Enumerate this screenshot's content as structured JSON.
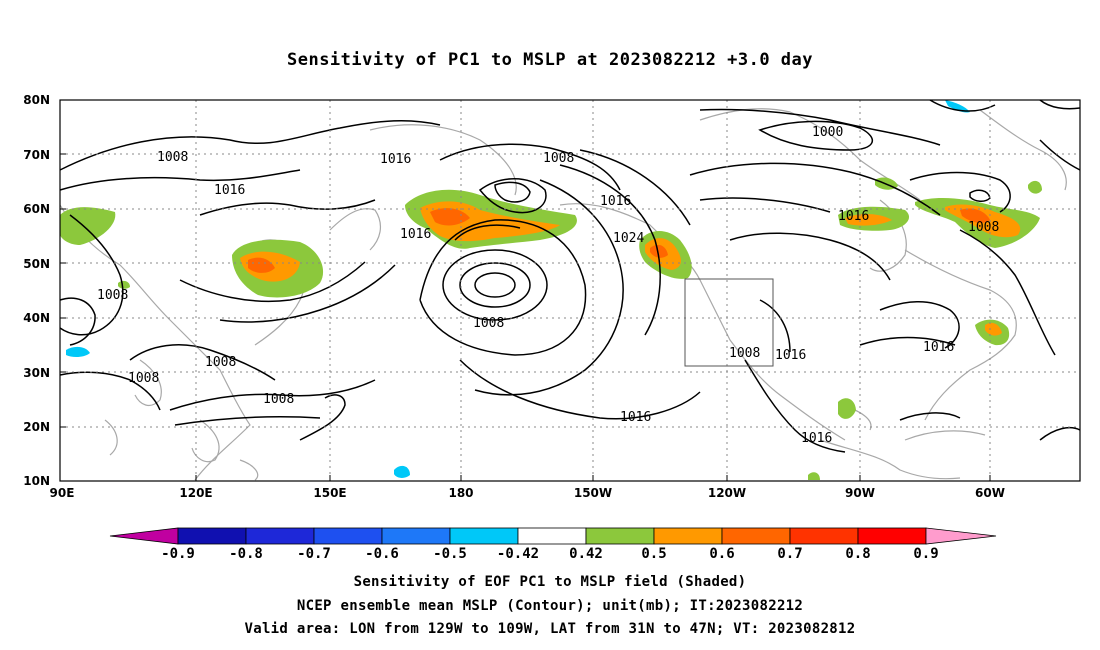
{
  "title": "Sensitivity of PC1 to MSLP at 2023082212 +3.0 day",
  "lat_labels": [
    "80N",
    "70N",
    "60N",
    "50N",
    "40N",
    "30N",
    "20N",
    "10N"
  ],
  "lon_labels": [
    "90E",
    "120E",
    "150E",
    "180",
    "150W",
    "120W",
    "90W",
    "60W"
  ],
  "contour_labels": [
    "1008",
    "1016",
    "1008",
    "1016",
    "1000",
    "1016",
    "1016",
    "1024",
    "1016",
    "1008",
    "1008",
    "1008",
    "1016",
    "1008",
    "1008",
    "1008",
    "1016",
    "1016",
    "1016",
    "1008"
  ],
  "colorbar": {
    "labels": [
      "-0.9",
      "-0.8",
      "-0.7",
      "-0.6",
      "-0.5",
      "-0.42",
      "0.42",
      "0.5",
      "0.6",
      "0.7",
      "0.8",
      "0.9"
    ],
    "colors": [
      "#c000a0",
      "#1010b0",
      "#1e28d8",
      "#1e50f0",
      "#1e78f8",
      "#00c8f8",
      "#ffffff",
      "#8cc83c",
      "#ff9900",
      "#ff6600",
      "#ff3300",
      "#ff0000",
      "#ff9ccd"
    ]
  },
  "captions": [
    "Sensitivity of EOF PC1 to MSLP field (Shaded)",
    "NCEP ensemble mean MSLP (Contour); unit(mb); IT:2023082212",
    "Valid area: LON from 129W to 109W, LAT from 31N to 47N; VT: 2023082812"
  ]
}
